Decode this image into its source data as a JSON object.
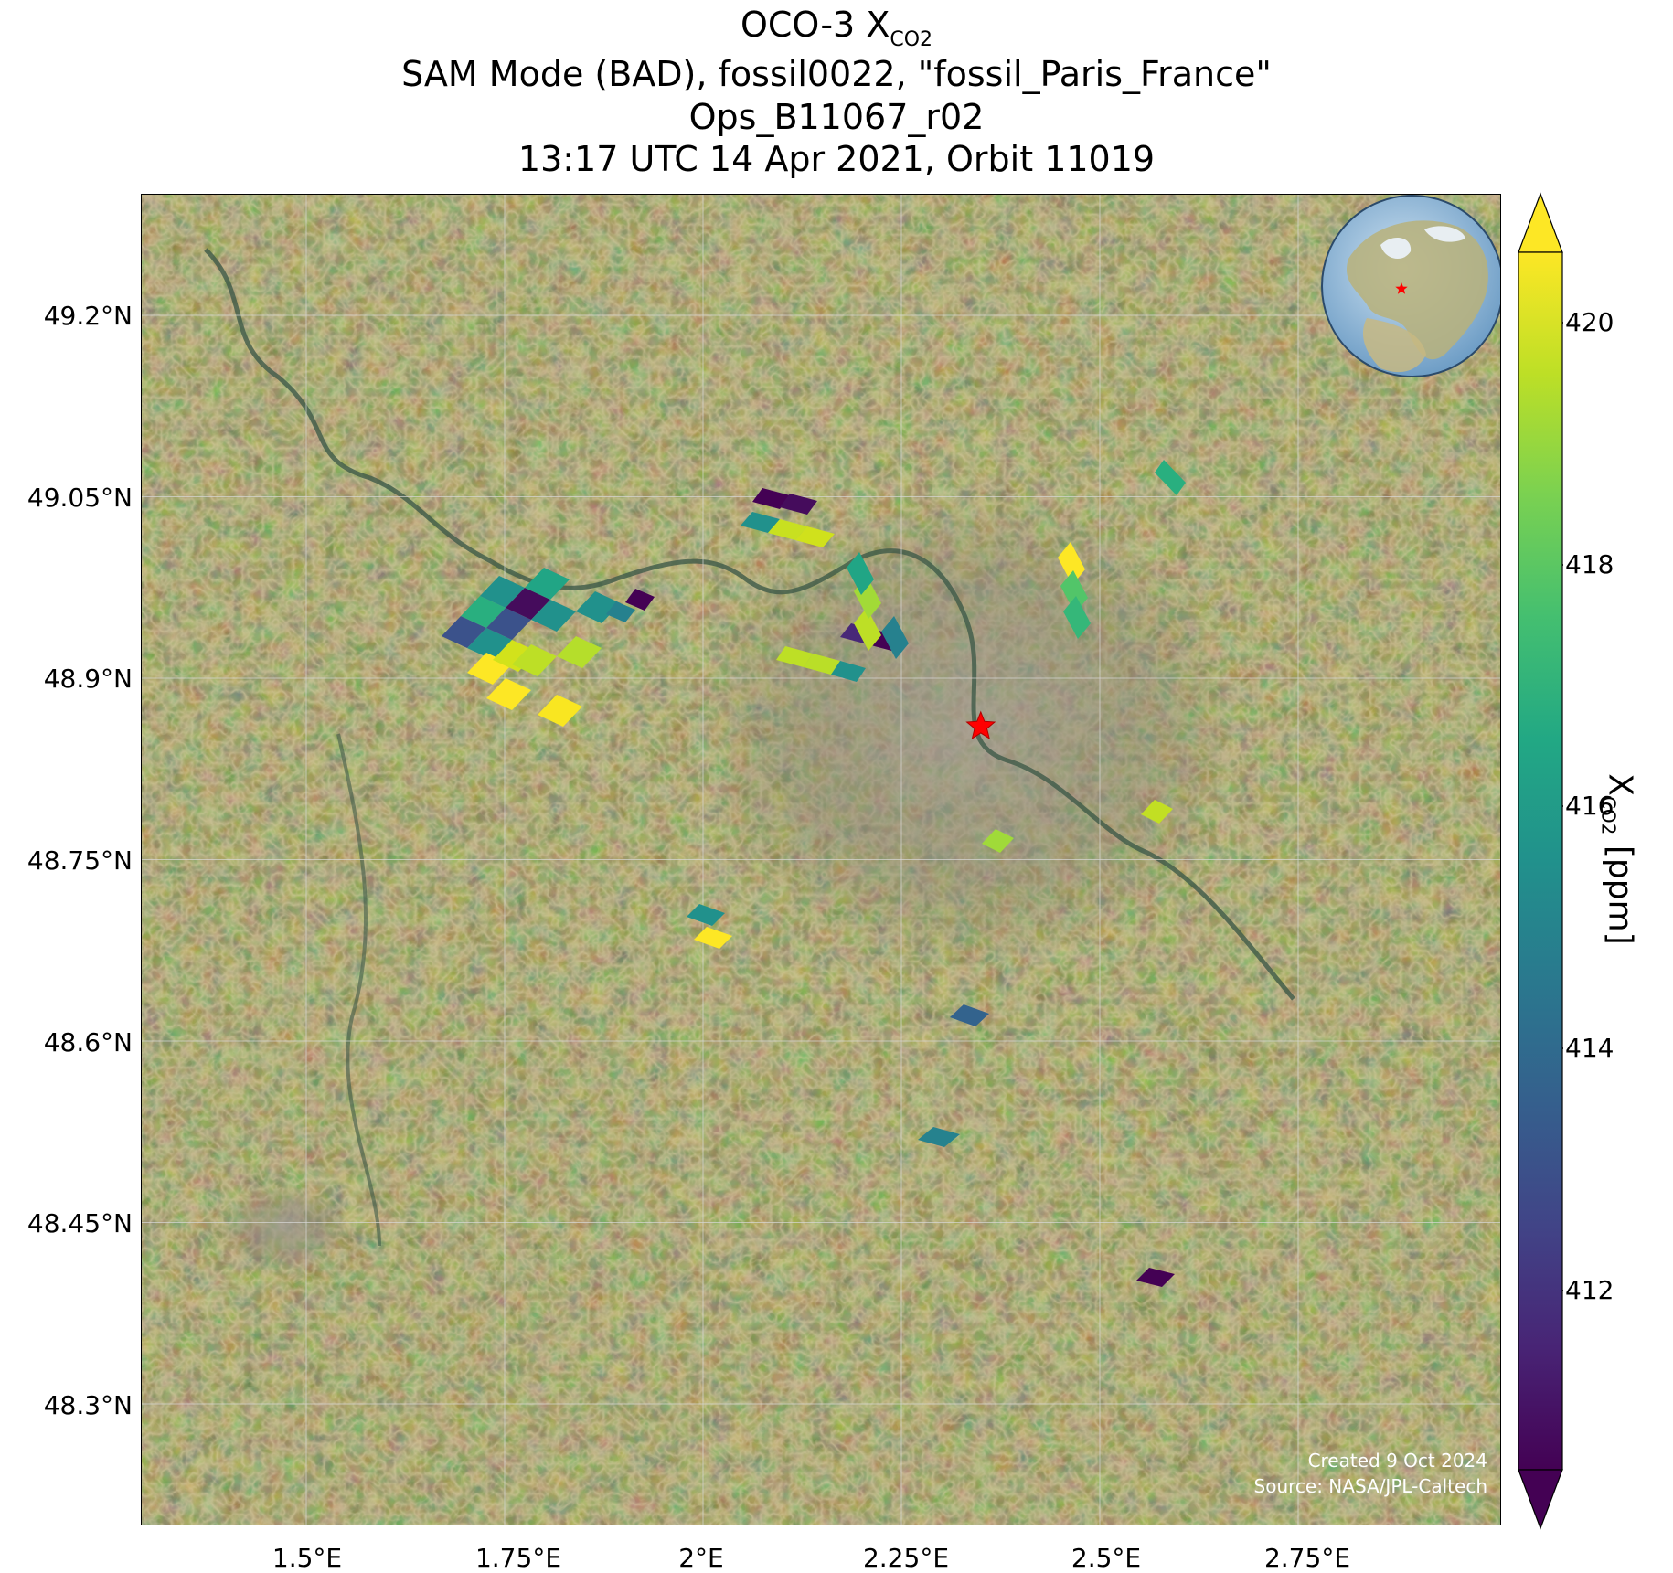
{
  "title": {
    "line1_prefix": "OCO-3 X",
    "line1_sub": "CO2",
    "line2": "SAM Mode (BAD), fossil0022, \"fossil_Paris_France\"",
    "line3": "Ops_B11067_r02",
    "line4": "13:17 UTC 14 Apr 2021, Orbit 11019"
  },
  "axes": {
    "lat_ticks": [
      "49.2°N",
      "49.05°N",
      "48.9°N",
      "48.75°N",
      "48.6°N",
      "48.45°N",
      "48.3°N"
    ],
    "lon_ticks": [
      "1.5°E",
      "1.75°E",
      "2°E",
      "2.25°E",
      "2.5°E",
      "2.75°E"
    ]
  },
  "colorbar": {
    "label_prefix": "X",
    "label_sub": "CO2",
    "label_suffix": " [ppm]",
    "ticks": [
      "420",
      "418",
      "416",
      "414",
      "412"
    ],
    "colormap": "viridis"
  },
  "credits": {
    "created": "Created 9 Oct 2024",
    "source": "Source: NASA/JPL-Caltech"
  },
  "target_marker": {
    "color": "#ff0000",
    "lon": 2.35,
    "lat": 48.86
  },
  "colors": {
    "background_imagery": "#4d5a2a",
    "gridlines": "#d8d8d8"
  }
}
